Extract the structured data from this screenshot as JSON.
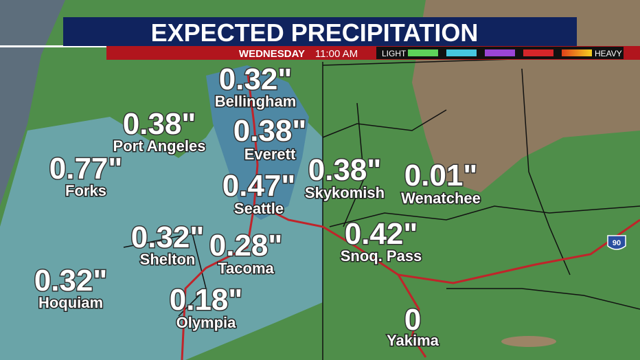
{
  "header": {
    "title": "EXPECTED PRECIPITATION",
    "day": "WEDNESDAY",
    "time": "11:00 AM"
  },
  "legend": {
    "low": "LIGHT",
    "high": "HEAVY"
  },
  "highway": "90",
  "cities": [
    {
      "name": "Bellingham",
      "amount": "0.32\""
    },
    {
      "name": "Port Angeles",
      "amount": "0.38\""
    },
    {
      "name": "Everett",
      "amount": "0.38\""
    },
    {
      "name": "Forks",
      "amount": "0.77\""
    },
    {
      "name": "Skykomish",
      "amount": "0.38\""
    },
    {
      "name": "Wenatchee",
      "amount": "0.01\""
    },
    {
      "name": "Seattle",
      "amount": "0.47\""
    },
    {
      "name": "Snoq. Pass",
      "amount": "0.42\""
    },
    {
      "name": "Shelton",
      "amount": "0.32\""
    },
    {
      "name": "Tacoma",
      "amount": "0.28\""
    },
    {
      "name": "Hoquiam",
      "amount": "0.32\""
    },
    {
      "name": "Olympia",
      "amount": "0.18\""
    },
    {
      "name": "Yakima",
      "amount": "0"
    }
  ]
}
